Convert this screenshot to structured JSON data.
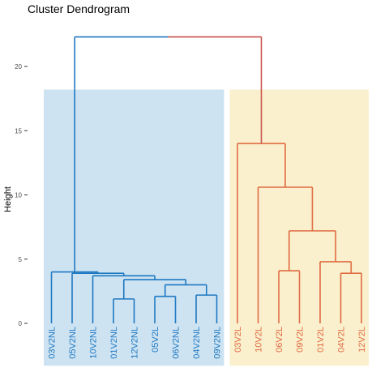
{
  "chart_data": {
    "type": "dendrogram",
    "title": "Cluster Dendrogram",
    "ylabel": "Height",
    "xlabel": "",
    "ylim": [
      -3.3,
      23.5
    ],
    "yticks": [
      0,
      5,
      10,
      15,
      20
    ],
    "grid": false,
    "clusters": [
      {
        "color": "#1f78c1",
        "fill": "#cde3f2",
        "leaves": [
          "03V2NL",
          "05V2NL",
          "10V2NL",
          "01V2NL",
          "12V2NL",
          "05V2L",
          "06V2NL",
          "04V2NL",
          "09V2NL"
        ]
      },
      {
        "color": "#e06b42",
        "fill": "#faf0cd",
        "leaves": [
          "03V2L",
          "10V2L",
          "06V2L",
          "09V2L",
          "01V2L",
          "04V2L",
          "12V2L"
        ]
      }
    ],
    "leaf_order": [
      "03V2NL",
      "05V2NL",
      "10V2NL",
      "01V2NL",
      "12V2NL",
      "05V2L",
      "06V2NL",
      "04V2NL",
      "09V2NL",
      "03V2L",
      "10V2L",
      "06V2L",
      "09V2L",
      "01V2L",
      "04V2L",
      "12V2L"
    ],
    "cluster_box_top": 18.2,
    "cluster_box_bottom": -3.3,
    "root_color": "#c8504b",
    "merges": [
      {
        "id": "a",
        "children": [
          "01V2NL",
          "12V2NL"
        ],
        "height": 1.9,
        "cluster": 0
      },
      {
        "id": "b",
        "children": [
          "05V2L",
          "06V2NL"
        ],
        "height": 2.1,
        "cluster": 0
      },
      {
        "id": "c",
        "children": [
          "04V2NL",
          "09V2NL"
        ],
        "height": 2.2,
        "cluster": 0
      },
      {
        "id": "d",
        "children": [
          "b",
          "c"
        ],
        "height": 3.0,
        "cluster": 0
      },
      {
        "id": "e",
        "children": [
          "a",
          "d"
        ],
        "height": 3.4,
        "cluster": 0
      },
      {
        "id": "f",
        "children": [
          "10V2NL",
          "e"
        ],
        "height": 3.7,
        "cluster": 0
      },
      {
        "id": "g",
        "children": [
          "05V2NL",
          "f"
        ],
        "height": 3.9,
        "cluster": 0
      },
      {
        "id": "h",
        "children": [
          "03V2NL",
          "g"
        ],
        "height": 4.0,
        "cluster": 0
      },
      {
        "id": "i",
        "children": [
          "04V2L",
          "12V2L"
        ],
        "height": 3.9,
        "cluster": 1
      },
      {
        "id": "j",
        "children": [
          "06V2L",
          "09V2L"
        ],
        "height": 4.1,
        "cluster": 1
      },
      {
        "id": "k",
        "children": [
          "01V2L",
          "i"
        ],
        "height": 4.8,
        "cluster": 1
      },
      {
        "id": "l",
        "children": [
          "j",
          "k"
        ],
        "height": 7.2,
        "cluster": 1
      },
      {
        "id": "m",
        "children": [
          "10V2L",
          "l"
        ],
        "height": 10.6,
        "cluster": 1
      },
      {
        "id": "n",
        "children": [
          "03V2L",
          "m"
        ],
        "height": 14.0,
        "cluster": 1
      },
      {
        "id": "root",
        "children": [
          "h",
          "n"
        ],
        "height": 22.3,
        "cluster": -1
      }
    ]
  }
}
